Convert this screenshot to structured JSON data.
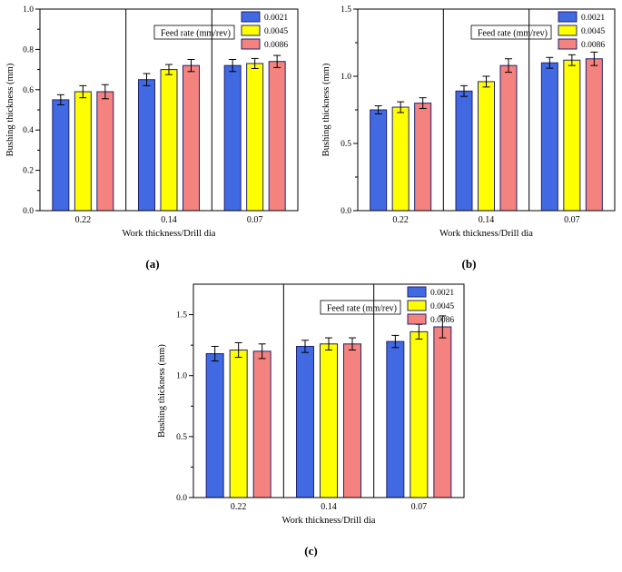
{
  "colors": {
    "bar_edge": "#22226e",
    "error_bar": "#000000",
    "axis": "#000000",
    "background": "#ffffff",
    "series_blue": "#4169e1",
    "series_yellow": "#ffff00",
    "series_red": "#f4827e"
  },
  "chart_data": [
    {
      "type": "bar",
      "caption": "(a)",
      "legend_title": "Feed rate (mm/rev)",
      "xlabel": "Work thickness/Drill dia",
      "ylabel": "Bushing thickness (mm)",
      "categories": [
        "0.22",
        "0.14",
        "0.07"
      ],
      "ylim": [
        0,
        1.0
      ],
      "minor_step": 0.1,
      "yticks": [
        {
          "v": 0.0,
          "label": "0.0"
        },
        {
          "v": 0.2,
          "label": "0.2"
        },
        {
          "v": 0.4,
          "label": "0.4"
        },
        {
          "v": 0.6,
          "label": "0.6"
        },
        {
          "v": 0.8,
          "label": "0.8"
        },
        {
          "v": 1.0,
          "label": "1.0"
        }
      ],
      "series": [
        {
          "name": "0.0021",
          "color": "#4169e1",
          "values": [
            0.55,
            0.65,
            0.72
          ],
          "errors": [
            0.025,
            0.03,
            0.03
          ]
        },
        {
          "name": "0.0045",
          "color": "#ffff00",
          "values": [
            0.59,
            0.7,
            0.73
          ],
          "errors": [
            0.03,
            0.025,
            0.025
          ]
        },
        {
          "name": "0.0086",
          "color": "#f4827e",
          "values": [
            0.59,
            0.72,
            0.74
          ],
          "errors": [
            0.035,
            0.03,
            0.03
          ]
        }
      ]
    },
    {
      "type": "bar",
      "caption": "(b)",
      "legend_title": "Feed rate (mm/rev)",
      "xlabel": "Work thickness/Drill dia",
      "ylabel": "Bushing thickness (mm)",
      "categories": [
        "0.22",
        "0.14",
        "0.07"
      ],
      "ylim": [
        0,
        1.5
      ],
      "minor_step": 0.25,
      "yticks": [
        {
          "v": 0.0,
          "label": "0.0"
        },
        {
          "v": 0.5,
          "label": "0.5"
        },
        {
          "v": 1.0,
          "label": "1.0"
        },
        {
          "v": 1.5,
          "label": "1.5"
        }
      ],
      "series": [
        {
          "name": "0.0021",
          "color": "#4169e1",
          "values": [
            0.75,
            0.89,
            1.1
          ],
          "errors": [
            0.03,
            0.04,
            0.04
          ]
        },
        {
          "name": "0.0045",
          "color": "#ffff00",
          "values": [
            0.77,
            0.96,
            1.12
          ],
          "errors": [
            0.04,
            0.04,
            0.04
          ]
        },
        {
          "name": "0.0086",
          "color": "#f4827e",
          "values": [
            0.8,
            1.08,
            1.13
          ],
          "errors": [
            0.04,
            0.05,
            0.05
          ]
        }
      ]
    },
    {
      "type": "bar",
      "caption": "(c)",
      "legend_title": "Feed rate (mm/rev)",
      "xlabel": "Work thickness/Drill dia",
      "ylabel": "Bushing thickness (mm)",
      "categories": [
        "0.22",
        "0.14",
        "0.07"
      ],
      "ylim": [
        0,
        1.75
      ],
      "minor_step": 0.25,
      "yticks": [
        {
          "v": 0.0,
          "label": "0.0"
        },
        {
          "v": 0.5,
          "label": "0.5"
        },
        {
          "v": 1.0,
          "label": "1.0"
        },
        {
          "v": 1.5,
          "label": "1.5"
        }
      ],
      "series": [
        {
          "name": "0.0021",
          "color": "#4169e1",
          "values": [
            1.18,
            1.24,
            1.28
          ],
          "errors": [
            0.06,
            0.05,
            0.05
          ]
        },
        {
          "name": "0.0045",
          "color": "#ffff00",
          "values": [
            1.21,
            1.26,
            1.36
          ],
          "errors": [
            0.06,
            0.05,
            0.06
          ]
        },
        {
          "name": "0.0086",
          "color": "#f4827e",
          "values": [
            1.2,
            1.26,
            1.4
          ],
          "errors": [
            0.06,
            0.05,
            0.09
          ]
        }
      ]
    }
  ]
}
